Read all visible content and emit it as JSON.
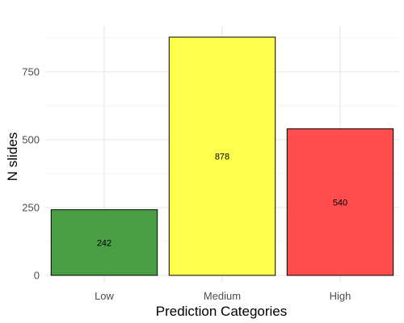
{
  "chart_data": {
    "type": "bar",
    "title": "",
    "xlabel": "Prediction Categories",
    "ylabel": "N slides",
    "categories": [
      "Low",
      "Medium",
      "High"
    ],
    "values": [
      242,
      878,
      540
    ],
    "data_labels": [
      "242",
      "878",
      "540"
    ],
    "colors": [
      "#4a9e44",
      "#ffff4d",
      "#ff4d4d"
    ],
    "ylim": [
      0,
      880
    ],
    "yticks": [
      0,
      250,
      500,
      750
    ],
    "ytick_labels": [
      "0",
      "250",
      "500",
      "750"
    ],
    "grid": true,
    "legend": "none"
  }
}
